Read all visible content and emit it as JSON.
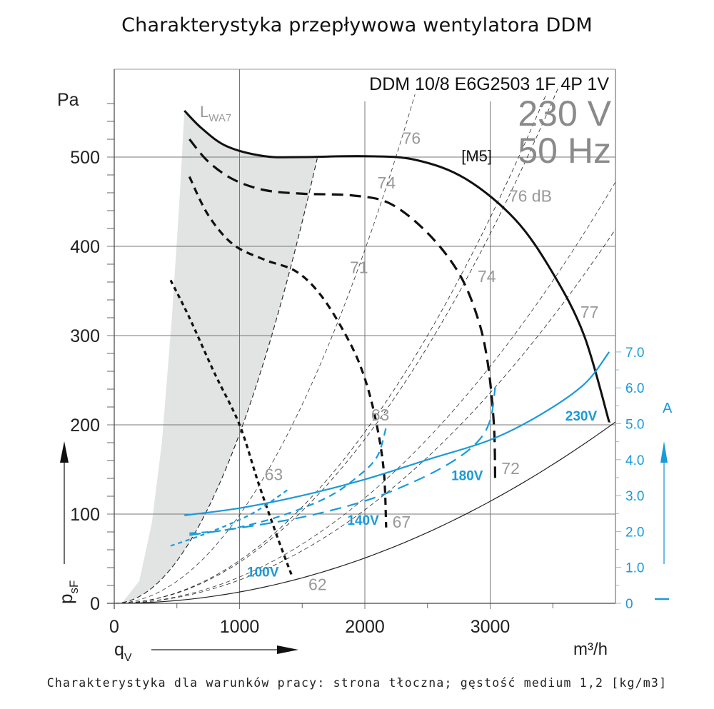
{
  "title": "Charakterystyka przepływowa wentylatora DDM",
  "footer": "Charakterystyka dla warunków pracy: strona tłoczna; gęstość medium 1,2 [kg/m3]",
  "colors": {
    "pressure": "#111111",
    "current": "#1a9ad9",
    "grid": "#777777",
    "label_gray": "#999999",
    "shade": "#e2e3e3"
  },
  "chart_data": {
    "type": "line",
    "title": "Charakterystyka przepływowa wentylatora DDM",
    "model": "DDM 10/8 E6G2503 1F 4P 1V",
    "voltage": "230 V",
    "frequency": "50 Hz",
    "motor_tag": "[M5]",
    "xlabel": "q",
    "xlabel_sub": "V",
    "xunit": "m³/h",
    "ylabel": "p",
    "ylabel_sub": "sF",
    "yunit": "Pa",
    "y2label": "A",
    "xlim": [
      0,
      4000
    ],
    "ylim": [
      0,
      580
    ],
    "y2lim": [
      0,
      7.5
    ],
    "x_ticks": [
      0,
      1000,
      2000,
      3000
    ],
    "x_tick_labels": [
      "0",
      "1000",
      "2000",
      "3000"
    ],
    "y_ticks": [
      0,
      100,
      200,
      300,
      400,
      500
    ],
    "y_tick_labels": [
      "0",
      "100",
      "200",
      "300",
      "400",
      "500"
    ],
    "y2_ticks": [
      0,
      1,
      2,
      3,
      4,
      5,
      6,
      7
    ],
    "y2_tick_labels": [
      "0",
      "1.0",
      "2.0",
      "3.0",
      "4.0",
      "5.0",
      "6.0",
      "7.0"
    ],
    "grid": true,
    "sound_label": "L",
    "sound_label_sub": "WA7",
    "pressure_series": [
      {
        "name": "230V",
        "style": "solid",
        "x": [
          560,
          700,
          900,
          1200,
          1500,
          2000,
          2400,
          2800,
          3200,
          3500,
          3750,
          3950
        ],
        "y": [
          552,
          532,
          512,
          501,
          500,
          501,
          497,
          476,
          430,
          370,
          300,
          203
        ]
      },
      {
        "name": "180V",
        "style": "dash-long",
        "x": [
          600,
          750,
          950,
          1200,
          1500,
          1900,
          2200,
          2500,
          2750,
          2900,
          2980,
          3030,
          3040
        ],
        "y": [
          520,
          495,
          475,
          463,
          459,
          457,
          448,
          415,
          370,
          320,
          270,
          200,
          135
        ]
      },
      {
        "name": "140V",
        "style": "dash-mid",
        "x": [
          600,
          750,
          950,
          1200,
          1450,
          1650,
          1850,
          1980,
          2080,
          2150,
          2170
        ],
        "y": [
          478,
          435,
          402,
          385,
          372,
          345,
          300,
          260,
          210,
          150,
          85
        ]
      },
      {
        "name": "100V",
        "style": "dash-short",
        "x": [
          450,
          600,
          800,
          1000,
          1150,
          1300,
          1420
        ],
        "y": [
          362,
          320,
          258,
          200,
          135,
          75,
          30
        ]
      }
    ],
    "current_series": [
      {
        "name": "230V",
        "style": "solid",
        "x": [
          560,
          1000,
          1500,
          2000,
          2500,
          3000,
          3400,
          3750,
          3950
        ],
        "y": [
          2.45,
          2.65,
          3.0,
          3.45,
          4.0,
          4.55,
          5.25,
          6.1,
          7.0
        ]
      },
      {
        "name": "180V",
        "style": "dash-long",
        "x": [
          600,
          1000,
          1500,
          2000,
          2400,
          2700,
          2900,
          3000,
          3040
        ],
        "y": [
          1.9,
          2.1,
          2.4,
          2.85,
          3.4,
          3.95,
          4.5,
          5.1,
          6.0
        ]
      },
      {
        "name": "140V",
        "style": "dash-mid",
        "x": [
          600,
          900,
          1300,
          1700,
          1950,
          2100,
          2170
        ],
        "y": [
          1.95,
          2.05,
          2.4,
          2.95,
          3.55,
          4.1,
          4.9
        ]
      },
      {
        "name": "100V",
        "style": "dash-short",
        "x": [
          450,
          700,
          950,
          1150,
          1400
        ],
        "y": [
          1.6,
          1.9,
          2.25,
          2.6,
          3.2
        ]
      }
    ],
    "system_curves": [
      {
        "label": "62",
        "style": "solid-thin",
        "k": 1.27e-05
      },
      {
        "label": "67",
        "style": "dash-thin",
        "k": 2.62e-05
      },
      {
        "label": "72",
        "style": "dash-thin",
        "k": 4.6e-05
      },
      {
        "label": "76 dB",
        "style": "dash-thin",
        "k": 4.8e-05
      }
    ],
    "annotations": [
      {
        "text": "76",
        "x": 2300,
        "y": 515
      },
      {
        "text": "74",
        "x": 2100,
        "y": 465
      },
      {
        "text": "71",
        "x": 1880,
        "y": 370
      },
      {
        "text": "76 dB",
        "x": 3150,
        "y": 450
      },
      {
        "text": "74",
        "x": 2900,
        "y": 360
      },
      {
        "text": "77",
        "x": 3720,
        "y": 320
      },
      {
        "text": "63",
        "x": 2050,
        "y": 205
      },
      {
        "text": "63",
        "x": 1200,
        "y": 138
      },
      {
        "text": "67",
        "x": 2220,
        "y": 85
      },
      {
        "text": "72",
        "x": 3090,
        "y": 145
      },
      {
        "text": "62",
        "x": 1550,
        "y": 15
      }
    ],
    "voltage_labels": [
      {
        "text": "230V",
        "x": 3600,
        "y": 205
      },
      {
        "text": "180V",
        "x": 2690,
        "y": 138
      },
      {
        "text": "140V",
        "x": 1860,
        "y": 88
      },
      {
        "text": "100V",
        "x": 1060,
        "y": 30
      }
    ]
  }
}
